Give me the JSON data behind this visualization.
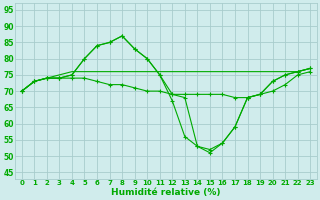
{
  "background_color": "#d0ecec",
  "grid_color": "#a8cccc",
  "line_color": "#00aa00",
  "xlabel": "Humidité relative (%)",
  "xlim": [
    -0.5,
    23.5
  ],
  "ylim": [
    43,
    97
  ],
  "yticks": [
    45,
    50,
    55,
    60,
    65,
    70,
    75,
    80,
    85,
    90,
    95
  ],
  "xticks": [
    0,
    1,
    2,
    3,
    4,
    5,
    6,
    7,
    8,
    9,
    10,
    11,
    12,
    13,
    14,
    15,
    16,
    17,
    18,
    19,
    20,
    21,
    22,
    23
  ],
  "series_marked1": [
    70,
    73,
    74,
    74,
    74,
    74,
    73,
    72,
    72,
    71,
    70,
    70,
    69,
    69,
    69,
    69,
    69,
    68,
    68,
    69,
    70,
    72,
    75,
    76
  ],
  "series_marked2": [
    70,
    73,
    74,
    74,
    75,
    80,
    84,
    85,
    87,
    83,
    80,
    75,
    67,
    56,
    53,
    51,
    54,
    59,
    68,
    69,
    73,
    75,
    76,
    77
  ],
  "series_marked3": [
    70,
    73,
    74,
    74,
    75,
    80,
    84,
    85,
    87,
    83,
    80,
    75,
    69,
    68,
    53,
    52,
    54,
    59,
    68,
    69,
    73,
    75,
    76,
    77
  ],
  "series_flat": [
    70,
    73,
    74,
    75,
    76,
    76,
    76,
    76,
    76,
    76,
    76,
    76,
    76,
    76,
    76,
    76,
    76,
    76,
    76,
    76,
    76,
    76,
    76,
    77
  ]
}
